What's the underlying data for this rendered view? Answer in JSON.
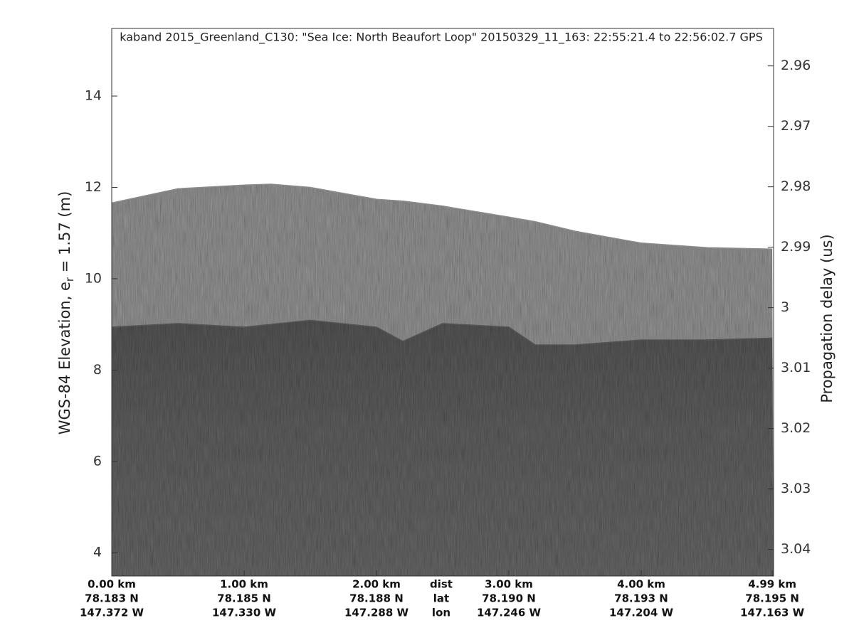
{
  "chart_data": {
    "type": "radargram",
    "title": "kaband 2015_Greenland_C130: \"Sea Ice: North Beaufort Loop\"  20150329_11_163: 22:55:21.4 to 22:56:02.7 GPS",
    "ylabel": "WGS-84 Elevation, e",
    "ylabel_sub": "r",
    "ylabel_end": " = 1.57 (m)",
    "y2label": "Propagation delay (us)",
    "x": [
      0,
      0.5,
      1.0,
      1.2,
      1.5,
      2.0,
      2.2,
      2.5,
      3.0,
      3.2,
      3.5,
      4.0,
      4.5,
      4.99
    ],
    "series": [
      {
        "color": "#8c8c8c",
        "values": [
          11.66,
          11.97,
          12.05,
          12.07,
          12.0,
          11.74,
          11.7,
          11.59,
          11.35,
          11.25,
          11.04,
          10.78,
          10.68,
          10.65
        ]
      },
      {
        "color": "#555555",
        "values": [
          8.94,
          9.02,
          8.94,
          9.0,
          9.09,
          8.94,
          8.63,
          9.02,
          8.94,
          8.55,
          8.55,
          8.66,
          8.66,
          8.7
        ]
      }
    ],
    "xlim": [
      0,
      5.0
    ],
    "xticks": [
      {
        "value": 0,
        "label": "0.00 km"
      },
      {
        "value": 1,
        "label": "1.00 km"
      },
      {
        "value": 2,
        "label": "2.00 km"
      },
      {
        "value": 3,
        "label": "3.00 km"
      },
      {
        "value": 4,
        "label": "4.00 km"
      },
      {
        "value": 4.99,
        "label": "4.99 km"
      }
    ],
    "lat_labels": [
      "78.183 N",
      "78.185 N",
      "78.188 N",
      "78.190 N",
      "78.193 N",
      "78.195 N"
    ],
    "lon_labels": [
      "147.372 W",
      "147.330 W",
      "147.288 W",
      "147.246 W",
      "147.204 W",
      "147.163 W"
    ],
    "row_labels": [
      "dist",
      "lat",
      "lon"
    ],
    "ylim": [
      3.49,
      15.48
    ],
    "yticks": [
      4,
      6,
      8,
      10,
      12,
      14
    ],
    "y2lim": [
      3.0444,
      2.9538
    ],
    "y2ticks": [
      2.96,
      2.97,
      2.98,
      2.99,
      3,
      3.01,
      3.02,
      3.03,
      3.04
    ]
  }
}
